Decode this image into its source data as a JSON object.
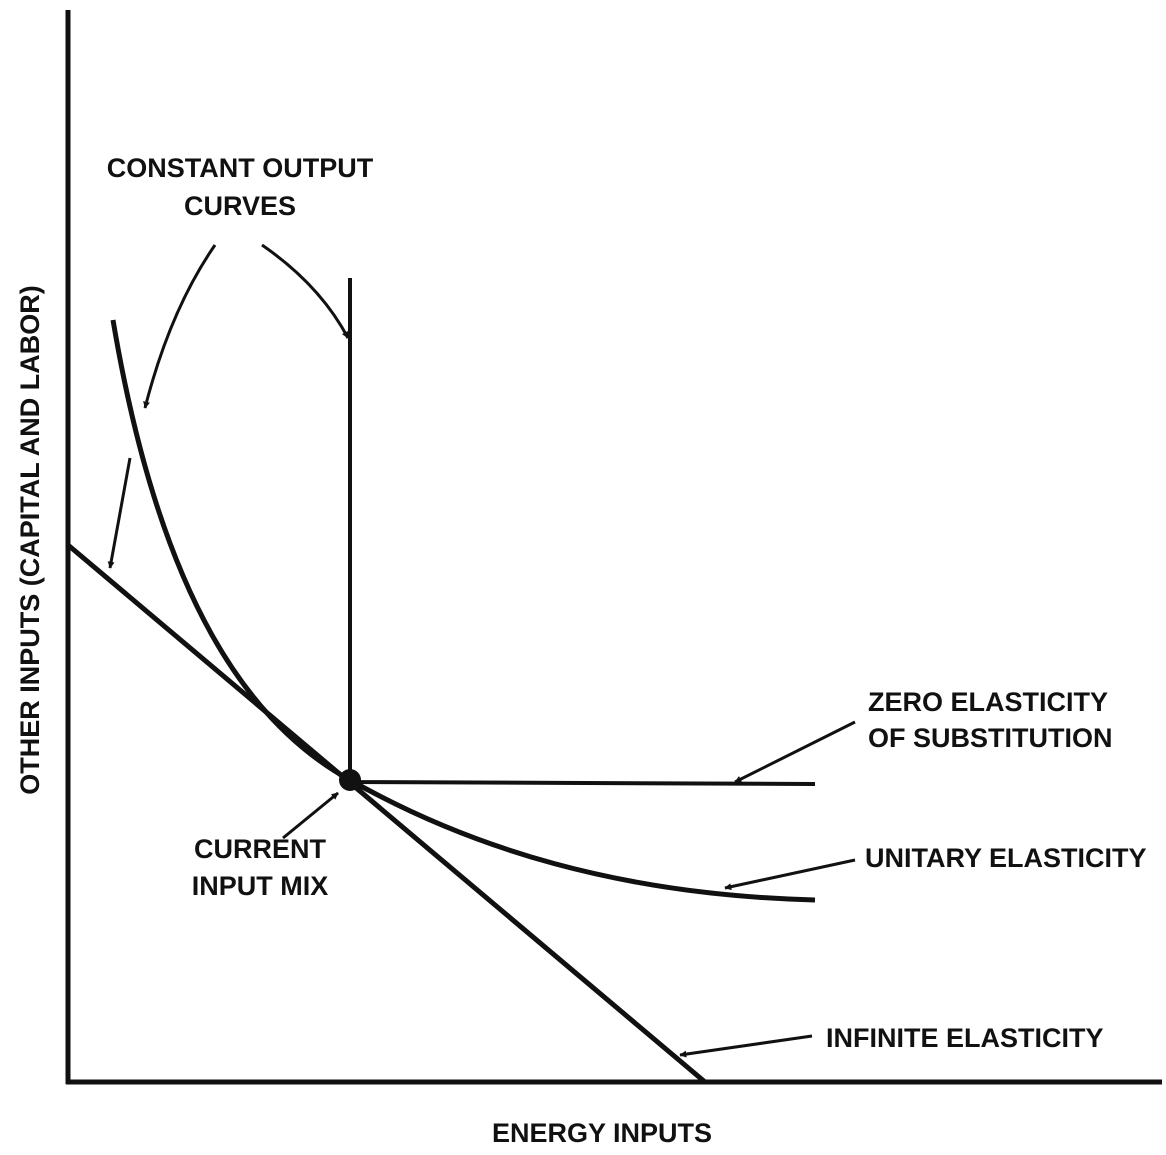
{
  "diagram": {
    "y_axis_label": "OTHER INPUTS (CAPITAL AND LABOR)",
    "x_axis_label": "ENERGY INPUTS",
    "constant_output_curves": [
      "CONSTANT OUTPUT",
      "CURVES"
    ],
    "zero_elasticity": [
      "ZERO ELASTICITY",
      "OF SUBSTITUTION"
    ],
    "unitary_elasticity": "UNITARY ELASTICITY",
    "infinite_elasticity": "INFINITE ELASTICITY",
    "current_input_mix": [
      "CURRENT",
      "INPUT MIX"
    ]
  }
}
